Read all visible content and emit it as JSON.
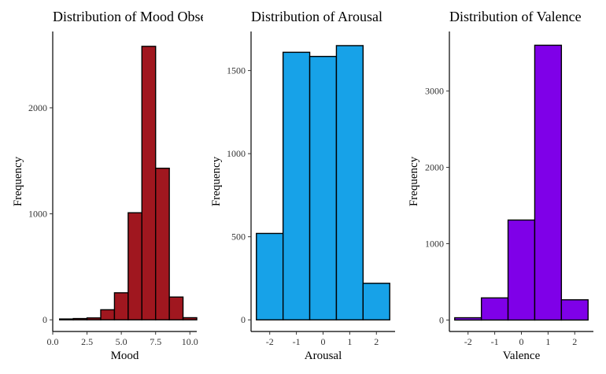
{
  "chart_data": [
    {
      "type": "bar",
      "title": "Distribution of Mood Observations",
      "xlabel": "Mood",
      "ylabel": "Frequency",
      "color": "#A0171F",
      "bin_width": 1,
      "x": [
        1,
        2,
        3,
        4,
        5,
        6,
        7,
        8,
        9,
        10
      ],
      "values": [
        8,
        12,
        18,
        95,
        255,
        1010,
        2580,
        1430,
        215,
        20
      ],
      "xlim": [
        0,
        10.5
      ],
      "ylim": [
        -110,
        2720
      ],
      "xticks": [
        0.0,
        2.5,
        5.0,
        7.5,
        10.0
      ],
      "xtick_labels": [
        "0.0",
        "2.5",
        "5.0",
        "7.5",
        "10.0"
      ],
      "yticks": [
        0,
        1000,
        2000
      ],
      "ytick_labels": [
        "0",
        "1000",
        "2000"
      ],
      "grid": false
    },
    {
      "type": "bar",
      "title": "Distribution of Arousal",
      "xlabel": "Arousal",
      "ylabel": "Frequency",
      "color": "#17A2E8",
      "bin_width": 1,
      "x": [
        -2,
        -1,
        0,
        1,
        2
      ],
      "values": [
        520,
        1610,
        1585,
        1650,
        220
      ],
      "xlim": [
        -2.7,
        2.7
      ],
      "ylim": [
        -70,
        1735
      ],
      "xticks": [
        -2,
        -1,
        0,
        1,
        2
      ],
      "xtick_labels": [
        "-2",
        "-1",
        "0",
        "1",
        "2"
      ],
      "yticks": [
        0,
        500,
        1000,
        1500
      ],
      "ytick_labels": [
        "0",
        "500",
        "1000",
        "1500"
      ],
      "grid": false
    },
    {
      "type": "bar",
      "title": "Distribution of Valence",
      "xlabel": "Valence",
      "ylabel": "Frequency",
      "color": "#7F00E8",
      "bin_width": 1,
      "x": [
        -2,
        -1,
        0,
        1,
        2
      ],
      "values": [
        30,
        290,
        1310,
        3600,
        265
      ],
      "xlim": [
        -2.7,
        2.7
      ],
      "ylim": [
        -150,
        3780
      ],
      "xticks": [
        -2,
        -1,
        0,
        1,
        2
      ],
      "xtick_labels": [
        "-2",
        "-1",
        "0",
        "1",
        "2"
      ],
      "yticks": [
        0,
        1000,
        2000,
        3000
      ],
      "ytick_labels": [
        "0",
        "1000",
        "2000",
        "3000"
      ],
      "grid": false
    }
  ]
}
